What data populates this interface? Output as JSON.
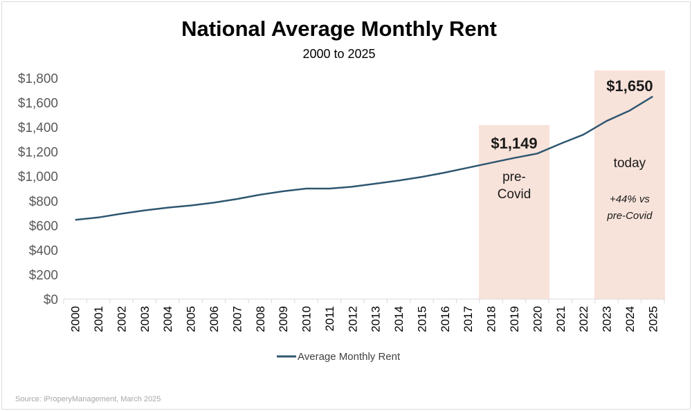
{
  "chart_data": {
    "type": "line",
    "title": "National Average Monthly Rent",
    "subtitle": "2000 to 2025",
    "x": [
      "2000",
      "2001",
      "2002",
      "2003",
      "2004",
      "2005",
      "2006",
      "2007",
      "2008",
      "2009",
      "2010",
      "2011",
      "2012",
      "2013",
      "2014",
      "2015",
      "2016",
      "2017",
      "2018",
      "2019",
      "2020",
      "2021",
      "2022",
      "2023",
      "2024",
      "2025"
    ],
    "series": [
      {
        "name": "Average Monthly Rent",
        "color": "#2e5670",
        "values": [
          645,
          665,
          695,
          722,
          745,
          762,
          785,
          815,
          850,
          878,
          900,
          900,
          915,
          940,
          965,
          995,
          1030,
          1070,
          1110,
          1149,
          1185,
          1265,
          1340,
          1450,
          1535,
          1650
        ]
      }
    ],
    "ylim": [
      0,
      1800
    ],
    "yticks": [
      "$0",
      "$200",
      "$400",
      "$600",
      "$800",
      "$1,000",
      "$1,200",
      "$1,400",
      "$1,600",
      "$1,800"
    ],
    "ytick_values": [
      0,
      200,
      400,
      600,
      800,
      1000,
      1200,
      1400,
      1600,
      1800
    ],
    "highlights": [
      {
        "name": "pre-covid",
        "from": "2018",
        "to": "2020",
        "value_label": "$1,149",
        "label_line1": "pre-",
        "label_line2": "Covid",
        "color": "#f8e3da"
      },
      {
        "name": "today",
        "from": "2023",
        "to": "2025",
        "value_label": "$1,650",
        "label": "today",
        "note_line1": "+44% vs",
        "note_line2": "pre-Covid",
        "color": "#f8e3da"
      }
    ],
    "legend": "bottom",
    "grid": false
  },
  "source": "Source: iProperyManagement, March 2025"
}
